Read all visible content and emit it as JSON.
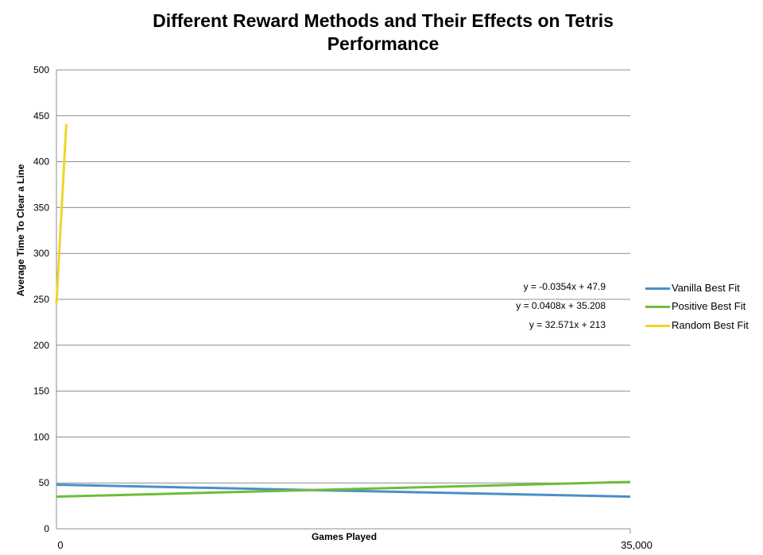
{
  "chart_data": {
    "type": "line",
    "title": "Different Reward Methods and Their Effects on Tetris Performance",
    "xlabel": "Games Played",
    "ylabel": "Average Time To Clear a Line",
    "xlim": [
      0,
      35000
    ],
    "ylim": [
      0,
      500
    ],
    "x_tick_labels": [
      "0",
      "35,000"
    ],
    "y_ticks": [
      0,
      50,
      100,
      150,
      200,
      250,
      300,
      350,
      400,
      450,
      500
    ],
    "grid": true,
    "legend_position": "right",
    "series": [
      {
        "name": "Vanilla Best Fit",
        "color": "#4a8fc6",
        "x": [
          0,
          35000
        ],
        "y": [
          48,
          35
        ],
        "equation": "y = -0.0354x + 47.9"
      },
      {
        "name": "Positive Best Fit",
        "color": "#6fbc3a",
        "x": [
          0,
          35000
        ],
        "y": [
          35,
          51
        ],
        "equation": "y = 0.0408x + 35.208"
      },
      {
        "name": "Random Best Fit",
        "color": "#f1d52a",
        "x": [
          0,
          600
        ],
        "y": [
          245,
          441
        ],
        "equation": "y = 32.571x + 213"
      }
    ]
  }
}
